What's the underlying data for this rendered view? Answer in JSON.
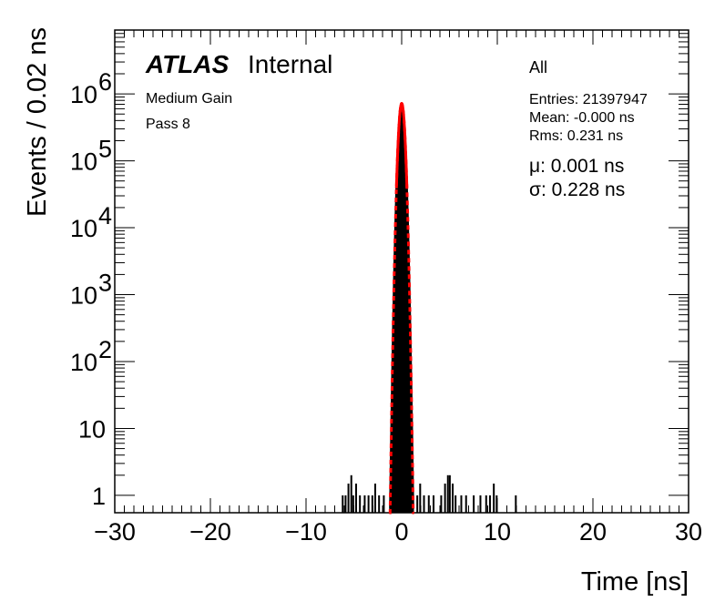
{
  "chart_data": {
    "type": "histogram",
    "xlabel": "Time [ns]",
    "ylabel": "Events / 0.02 ns",
    "x_range": [
      -30,
      30
    ],
    "y_scale": "log",
    "y_range": [
      0.55,
      9000000
    ],
    "x_ticks": [
      -30,
      -20,
      -10,
      0,
      10,
      20,
      30
    ],
    "x_tick_labels": [
      "−30",
      "−20",
      "−10",
      "0",
      "10",
      "20",
      "30"
    ],
    "y_ticks": [
      1,
      10,
      100,
      1000,
      10000,
      100000,
      1000000
    ],
    "y_tick_labels": [
      {
        "base": "1",
        "exp": ""
      },
      {
        "base": "10",
        "exp": ""
      },
      {
        "base": "10",
        "exp": "2"
      },
      {
        "base": "10",
        "exp": "3"
      },
      {
        "base": "10",
        "exp": "4"
      },
      {
        "base": "10",
        "exp": "5"
      },
      {
        "base": "10",
        "exp": "6"
      }
    ],
    "histogram": {
      "name": "All",
      "color": "#000000",
      "peak": {
        "mean": -0.0,
        "sigma": 0.231,
        "amplitude": 720000
      },
      "side_bins": [
        {
          "x": -6.2,
          "y": 1
        },
        {
          "x": -5.9,
          "y": 1
        },
        {
          "x": -5.6,
          "y": 1.5
        },
        {
          "x": -5.3,
          "y": 2
        },
        {
          "x": -5.1,
          "y": 1
        },
        {
          "x": -4.8,
          "y": 1.5
        },
        {
          "x": -4.4,
          "y": 1
        },
        {
          "x": -3.9,
          "y": 1
        },
        {
          "x": -3.5,
          "y": 1
        },
        {
          "x": -3.1,
          "y": 1
        },
        {
          "x": -2.8,
          "y": 1.5
        },
        {
          "x": -2.4,
          "y": 1
        },
        {
          "x": -1.9,
          "y": 1
        },
        {
          "x": 1.6,
          "y": 1
        },
        {
          "x": 1.9,
          "y": 1.5
        },
        {
          "x": 2.3,
          "y": 1
        },
        {
          "x": 2.8,
          "y": 1
        },
        {
          "x": 3.3,
          "y": 1
        },
        {
          "x": 4.1,
          "y": 1
        },
        {
          "x": 4.5,
          "y": 1.5
        },
        {
          "x": 4.8,
          "y": 2
        },
        {
          "x": 5.0,
          "y": 2
        },
        {
          "x": 5.3,
          "y": 1.5
        },
        {
          "x": 5.6,
          "y": 1
        },
        {
          "x": 6.2,
          "y": 1
        },
        {
          "x": 6.7,
          "y": 1
        },
        {
          "x": 7.5,
          "y": 1
        },
        {
          "x": 8.2,
          "y": 1
        },
        {
          "x": 8.8,
          "y": 1
        },
        {
          "x": 9.2,
          "y": 1
        },
        {
          "x": 9.6,
          "y": 1.5
        },
        {
          "x": 9.9,
          "y": 1
        },
        {
          "x": 11.9,
          "y": 1
        }
      ]
    },
    "fit": {
      "type": "gaussian",
      "color": "#ff0000",
      "mu": 0.001,
      "sigma": 0.228,
      "amplitude": 720000,
      "solid_range": [
        -0.55,
        0.55
      ],
      "dashed_range": [
        -1.3,
        1.3
      ]
    },
    "annotations": {
      "experiment": "ATLAS",
      "status": "Internal",
      "gain": "Medium Gain",
      "pass": "Pass 8",
      "selection": "All",
      "entries": "Entries: 21397947",
      "mean": "Mean: -0.000 ns",
      "rms": "Rms: 0.231 ns",
      "mu_text": "μ: 0.001 ns",
      "sigma_text": "σ: 0.228 ns"
    }
  }
}
